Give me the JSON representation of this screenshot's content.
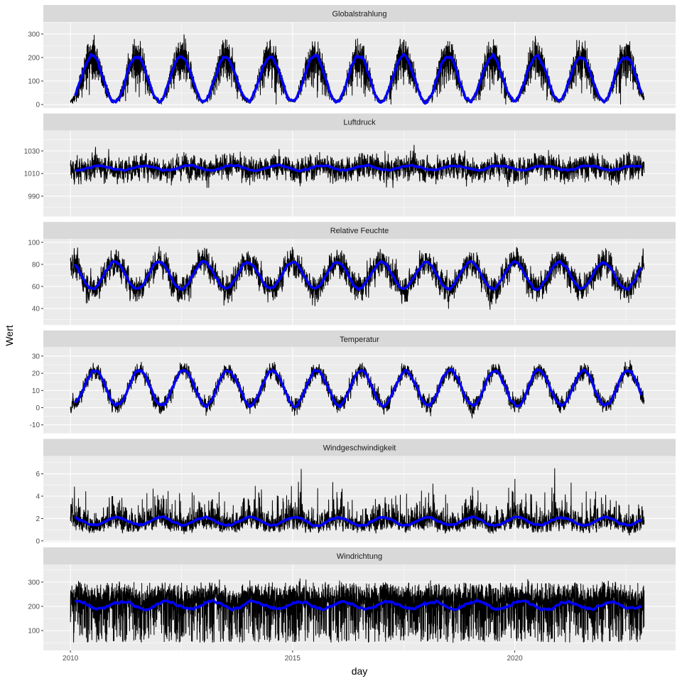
{
  "chart_data": {
    "type": "line",
    "layout": "faceted, one column, shared x axis, free y scales",
    "xlabel": "day",
    "ylabel": "Wert",
    "x_range": [
      "2010-01-01",
      "2022-11-30"
    ],
    "xlim": [
      2009.39,
      2023.62
    ],
    "x_ticks": [
      2010,
      2015,
      2020
    ],
    "grid": true,
    "raw_line_color": "#000000",
    "smooth_line_color": "#0000FF",
    "panel_background": "#EBEBEB",
    "strip_background": "#D9D9D9",
    "facets": [
      {
        "title": "Globalstrahlung",
        "ylim": [
          -15,
          351
        ],
        "y_ticks": [
          0,
          100,
          200,
          300
        ],
        "seasonal_mean": 110,
        "seasonal_amplitude": 95,
        "peak_day_of_year": 180,
        "noise": 60,
        "raw_min": 0,
        "raw_max": 335
      },
      {
        "title": "Luftdruck",
        "ylim": [
          972,
          1048
        ],
        "y_ticks": [
          990,
          1010,
          1030
        ],
        "seasonal_mean": 1015,
        "seasonal_amplitude": 2,
        "peak_day_of_year": 240,
        "noise": 8,
        "raw_min": 975,
        "raw_max": 1044
      },
      {
        "title": "Relative Feuchte",
        "ylim": [
          25,
          103
        ],
        "y_ticks": [
          40,
          60,
          80,
          100
        ],
        "seasonal_mean": 70,
        "seasonal_amplitude": 12,
        "peak_day_of_year": 0,
        "noise": 9,
        "raw_min": 28,
        "raw_max": 98
      },
      {
        "title": "Temperatur",
        "ylim": [
          -15,
          35
        ],
        "y_ticks": [
          -10,
          0,
          10,
          20,
          30
        ],
        "seasonal_mean": 11.5,
        "seasonal_amplitude": 10,
        "peak_day_of_year": 200,
        "noise": 3.5,
        "raw_min": -13,
        "raw_max": 32
      },
      {
        "title": "Windgeschwindigkeit",
        "ylim": [
          -0.1,
          7.6
        ],
        "y_ticks": [
          0,
          2,
          4,
          6
        ],
        "seasonal_mean": 1.75,
        "seasonal_amplitude": 0.35,
        "peak_day_of_year": 15,
        "noise": 0.8,
        "raw_min": 0.3,
        "raw_max": 7.2
      },
      {
        "title": "Windrichtung",
        "ylim": [
          18,
          373
        ],
        "y_ticks": [
          100,
          200,
          300
        ],
        "seasonal_mean": 205,
        "seasonal_amplitude": 15,
        "peak_day_of_year": 60,
        "noise": 70,
        "raw_min": 35,
        "raw_max": 355
      }
    ]
  }
}
